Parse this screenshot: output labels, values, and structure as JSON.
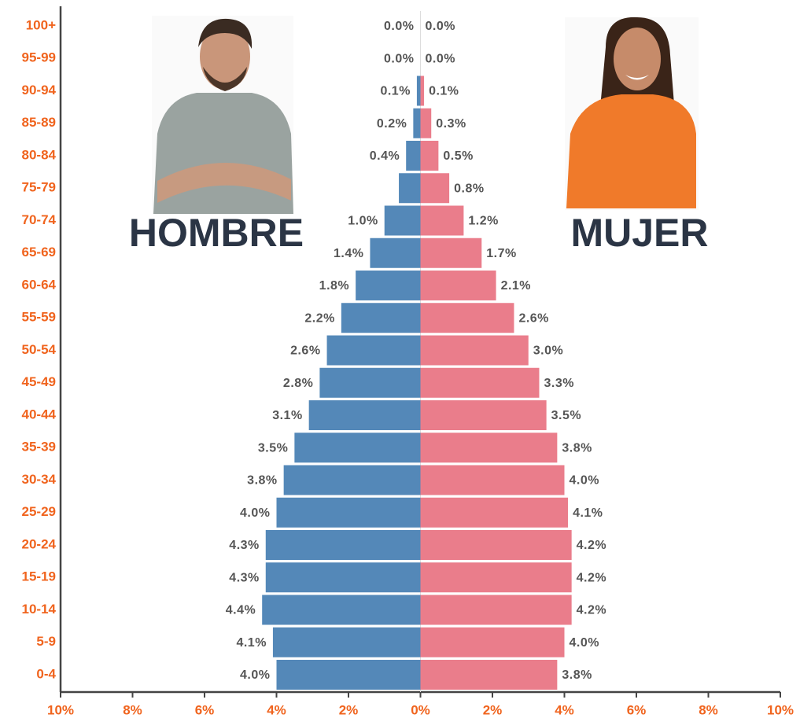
{
  "chart_data": {
    "type": "population-pyramid",
    "categories": [
      "100+",
      "95-99",
      "90-94",
      "85-89",
      "80-84",
      "75-79",
      "70-74",
      "65-69",
      "60-64",
      "55-59",
      "50-54",
      "45-49",
      "40-44",
      "35-39",
      "30-34",
      "25-29",
      "20-24",
      "15-19",
      "10-14",
      "5-9",
      "0-4"
    ],
    "series": [
      {
        "name": "HOMBRE",
        "color": "#5488b8",
        "side": "left",
        "values": [
          0.0,
          0.0,
          0.1,
          0.2,
          0.4,
          0.6,
          1.0,
          1.4,
          1.8,
          2.2,
          2.6,
          2.8,
          3.1,
          3.5,
          3.8,
          4.0,
          4.3,
          4.3,
          4.4,
          4.1,
          4.0
        ],
        "value_labels": [
          "0.0%",
          "0.0%",
          "0.1%",
          "0.2%",
          "0.4%",
          null,
          "1.0%",
          "1.4%",
          "1.8%",
          "2.2%",
          "2.6%",
          "2.8%",
          "3.1%",
          "3.5%",
          "3.8%",
          "4.0%",
          "4.3%",
          "4.3%",
          "4.4%",
          "4.1%",
          "4.0%"
        ]
      },
      {
        "name": "MUJER",
        "color": "#ea7d8b",
        "side": "right",
        "values": [
          0.0,
          0.0,
          0.1,
          0.3,
          0.5,
          0.8,
          1.2,
          1.7,
          2.1,
          2.6,
          3.0,
          3.3,
          3.5,
          3.8,
          4.0,
          4.1,
          4.2,
          4.2,
          4.2,
          4.0,
          3.8
        ],
        "value_labels": [
          "0.0%",
          "0.0%",
          "0.1%",
          "0.3%",
          "0.5%",
          "0.8%",
          "1.2%",
          "1.7%",
          "2.1%",
          "2.6%",
          "3.0%",
          "3.3%",
          "3.5%",
          "3.8%",
          "4.0%",
          "4.1%",
          "4.2%",
          "4.2%",
          "4.2%",
          "4.0%",
          "3.8%"
        ]
      }
    ],
    "xlim": [
      -10,
      10
    ],
    "xticks": [
      {
        "value": -10,
        "label": "10%"
      },
      {
        "value": -8,
        "label": "8%"
      },
      {
        "value": -6,
        "label": "6%"
      },
      {
        "value": -4,
        "label": "4%"
      },
      {
        "value": -2,
        "label": "2%"
      },
      {
        "value": 0,
        "label": "0%"
      },
      {
        "value": 2,
        "label": "2%"
      },
      {
        "value": 4,
        "label": "4%"
      },
      {
        "value": 6,
        "label": "6%"
      },
      {
        "value": 8,
        "label": "8%"
      },
      {
        "value": 10,
        "label": "10%"
      }
    ]
  }
}
